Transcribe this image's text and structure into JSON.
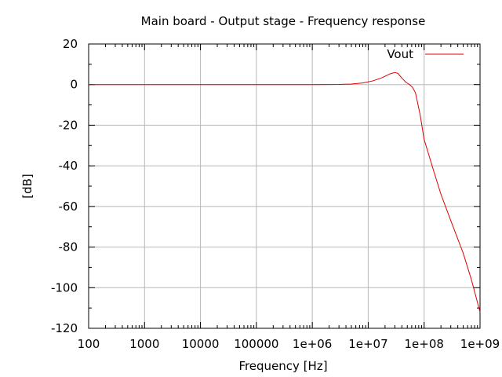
{
  "chart_data": {
    "type": "line",
    "title": "Main board - Output stage - Frequency response",
    "xlabel": "Frequency [Hz]",
    "ylabel": "[dB]",
    "xscale": "log",
    "xlim": [
      100,
      1000000000
    ],
    "ylim": [
      -120,
      20
    ],
    "grid": true,
    "legend_position": "top-right",
    "x_ticks": [
      {
        "value": 100,
        "label": "100"
      },
      {
        "value": 1000,
        "label": "1000"
      },
      {
        "value": 10000,
        "label": "10000"
      },
      {
        "value": 100000,
        "label": "100000"
      },
      {
        "value": 1000000,
        "label": "1e+06"
      },
      {
        "value": 10000000,
        "label": "1e+07"
      },
      {
        "value": 100000000,
        "label": "1e+08"
      },
      {
        "value": 1000000000,
        "label": "1e+09"
      }
    ],
    "y_ticks": [
      {
        "value": 20,
        "label": "20"
      },
      {
        "value": 0,
        "label": "0"
      },
      {
        "value": -20,
        "label": "-20"
      },
      {
        "value": -40,
        "label": "-40"
      },
      {
        "value": -60,
        "label": "-60"
      },
      {
        "value": -80,
        "label": "-80"
      },
      {
        "value": -100,
        "label": "-100"
      },
      {
        "value": -120,
        "label": "-120"
      }
    ],
    "series": [
      {
        "name": "Vout",
        "color": "#e00000",
        "x": [
          100,
          1000,
          10000,
          100000,
          1000000,
          3000000,
          5000000,
          8000000,
          12000000,
          18000000,
          24000000,
          30000000,
          34000000,
          40000000,
          48000000,
          55000000,
          62000000,
          70000000,
          85000000,
          100000000,
          150000000,
          200000000,
          300000000,
          500000000,
          700000000,
          1000000000
        ],
        "y": [
          0,
          0,
          0,
          0,
          0,
          0.1,
          0.3,
          0.8,
          1.8,
          3.5,
          5.2,
          6.0,
          5.5,
          3.2,
          1.0,
          0.0,
          -1.3,
          -4.0,
          -15.0,
          -27.0,
          -43.0,
          -54.0,
          -67.0,
          -83.0,
          -96.0,
          -112.0
        ]
      }
    ]
  }
}
